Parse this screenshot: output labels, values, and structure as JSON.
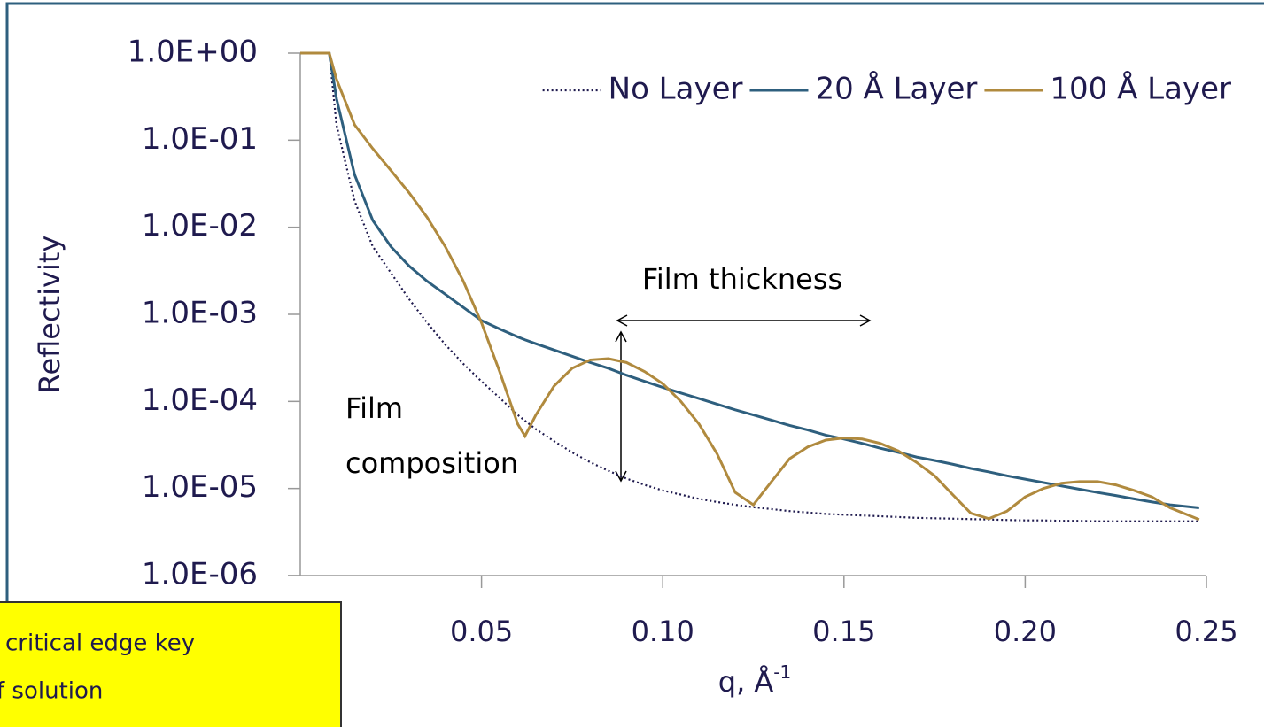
{
  "chart_data": {
    "type": "line",
    "ylabel": "Reflectivity",
    "xlabel": "q, Å",
    "xlabel_superscript": "-1",
    "yscale": "log",
    "ylim": [
      1e-06,
      1
    ],
    "yticks": [
      {
        "value": 1,
        "label": "1.0E+00"
      },
      {
        "value": 0.1,
        "label": "1.0E-01"
      },
      {
        "value": 0.01,
        "label": "1.0E-02"
      },
      {
        "value": 0.001,
        "label": "1.0E-03"
      },
      {
        "value": 0.0001,
        "label": "1.0E-04"
      },
      {
        "value": 1e-05,
        "label": "1.0E-05"
      },
      {
        "value": 1e-06,
        "label": "1.0E-06"
      }
    ],
    "xlim": [
      0,
      0.25
    ],
    "xticks": [
      0.05,
      {
        "value": 0.1,
        "label": "0.10"
      },
      0.15,
      {
        "value": 0.2,
        "label": "0.20"
      },
      0.25
    ],
    "legend": "top-right",
    "x": [
      0,
      0.008,
      0.01,
      0.015,
      0.02,
      0.025,
      0.03,
      0.035,
      0.04,
      0.045,
      0.05,
      0.055,
      0.06,
      0.062,
      0.065,
      0.07,
      0.075,
      0.08,
      0.085,
      0.09,
      0.095,
      0.1,
      0.105,
      0.11,
      0.115,
      0.12,
      0.125,
      0.13,
      0.135,
      0.14,
      0.145,
      0.15,
      0.155,
      0.16,
      0.165,
      0.17,
      0.175,
      0.18,
      0.185,
      0.19,
      0.195,
      0.2,
      0.205,
      0.21,
      0.215,
      0.22,
      0.225,
      0.23,
      0.235,
      0.24,
      0.248
    ],
    "series": [
      {
        "name": "No Layer",
        "color": "#1f1a4e",
        "dash": "dotted",
        "values": [
          1,
          1,
          0.15,
          0.02,
          0.006,
          0.003,
          0.0015,
          0.0008,
          0.00045,
          0.00027,
          0.00017,
          0.00011,
          7e-05,
          6e-05,
          4.8e-05,
          3.5e-05,
          2.6e-05,
          2e-05,
          1.6e-05,
          1.3e-05,
          1.1e-05,
          9.5e-06,
          8.5e-06,
          7.6e-06,
          7e-06,
          6.5e-06,
          6.1e-06,
          5.8e-06,
          5.5e-06,
          5.3e-06,
          5.1e-06,
          5e-06,
          4.9e-06,
          4.8e-06,
          4.7e-06,
          4.6e-06,
          4.55e-06,
          4.5e-06,
          4.45e-06,
          4.4e-06,
          4.35e-06,
          4.3e-06,
          4.3e-06,
          4.25e-06,
          4.25e-06,
          4.2e-06,
          4.2e-06,
          4.2e-06,
          4.2e-06,
          4.2e-06,
          4.2e-06
        ]
      },
      {
        "name": "20 Å Layer",
        "color": "#2e5f7e",
        "dash": "solid",
        "values": [
          1,
          1,
          0.3,
          0.04,
          0.012,
          0.006,
          0.0036,
          0.0024,
          0.0017,
          0.0012,
          0.00085,
          0.00068,
          0.00055,
          0.00051,
          0.00046,
          0.00039,
          0.00033,
          0.00028,
          0.00024,
          0.0002,
          0.00017,
          0.000145,
          0.000125,
          0.000108,
          9.3e-05,
          8e-05,
          7e-05,
          6.1e-05,
          5.3e-05,
          4.7e-05,
          4.1e-05,
          3.7e-05,
          3.3e-05,
          2.9e-05,
          2.6e-05,
          2.3e-05,
          2.1e-05,
          1.9e-05,
          1.7e-05,
          1.55e-05,
          1.4e-05,
          1.28e-05,
          1.17e-05,
          1.07e-05,
          9.8e-06,
          9e-06,
          8.3e-06,
          7.6e-06,
          7e-06,
          6.5e-06,
          6e-06
        ]
      },
      {
        "name": "100 Å Layer",
        "color": "#b08a3e",
        "dash": "solid",
        "values": [
          1,
          1,
          0.5,
          0.15,
          0.08,
          0.045,
          0.025,
          0.013,
          0.006,
          0.0024,
          0.0008,
          0.00022,
          5.5e-05,
          4e-05,
          7e-05,
          0.00015,
          0.00024,
          0.0003,
          0.00031,
          0.00028,
          0.00022,
          0.00016,
          0.0001,
          5.5e-05,
          2.5e-05,
          9e-06,
          6.5e-06,
          1.2e-05,
          2.2e-05,
          3e-05,
          3.6e-05,
          3.8e-05,
          3.7e-05,
          3.3e-05,
          2.7e-05,
          2e-05,
          1.4e-05,
          8.5e-06,
          5.2e-06,
          4.5e-06,
          5.5e-06,
          8e-06,
          1e-05,
          1.15e-05,
          1.2e-05,
          1.2e-05,
          1.1e-05,
          9.5e-06,
          8e-06,
          6e-06,
          4.4e-06
        ]
      }
    ],
    "annotations": [
      "Film thickness",
      "Film",
      "composition"
    ],
    "note_lines": [
      "critical edge key",
      "f solution"
    ]
  }
}
